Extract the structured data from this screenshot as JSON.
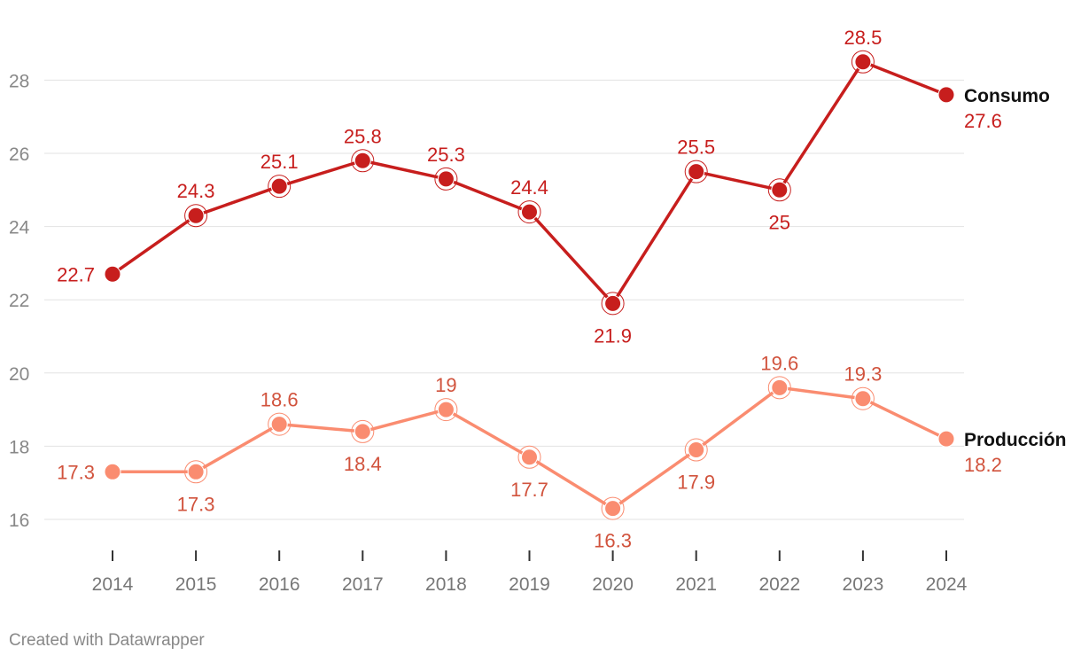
{
  "chart_data": {
    "type": "line",
    "x": [
      "2014",
      "2015",
      "2016",
      "2017",
      "2018",
      "2019",
      "2020",
      "2021",
      "2022",
      "2023",
      "2024"
    ],
    "y_ticks": [
      16,
      18,
      20,
      22,
      24,
      26,
      28
    ],
    "ylim": [
      15,
      30
    ],
    "grid": true,
    "series": [
      {
        "name": "Consumo",
        "color": "#c71e1d",
        "values": [
          22.7,
          24.3,
          25.1,
          25.8,
          25.3,
          24.4,
          21.9,
          25.5,
          25.0,
          28.5,
          27.6
        ],
        "labels": [
          "22.7",
          "24.3",
          "25.1",
          "25.8",
          "25.3",
          "24.4",
          "21.9",
          "25.5",
          "25",
          "28.5",
          "27.6"
        ]
      },
      {
        "name": "Producción",
        "color": "#fa8c70",
        "label_color": "#d1533d",
        "values": [
          17.3,
          17.3,
          18.6,
          18.4,
          19.0,
          17.7,
          16.3,
          17.9,
          19.6,
          19.3,
          18.2
        ],
        "labels": [
          "17.3",
          "17.3",
          "18.6",
          "18.4",
          "19",
          "17.7",
          "16.3",
          "17.9",
          "19.6",
          "19.3",
          "18.2"
        ]
      }
    ]
  },
  "credit": "Created with Datawrapper"
}
